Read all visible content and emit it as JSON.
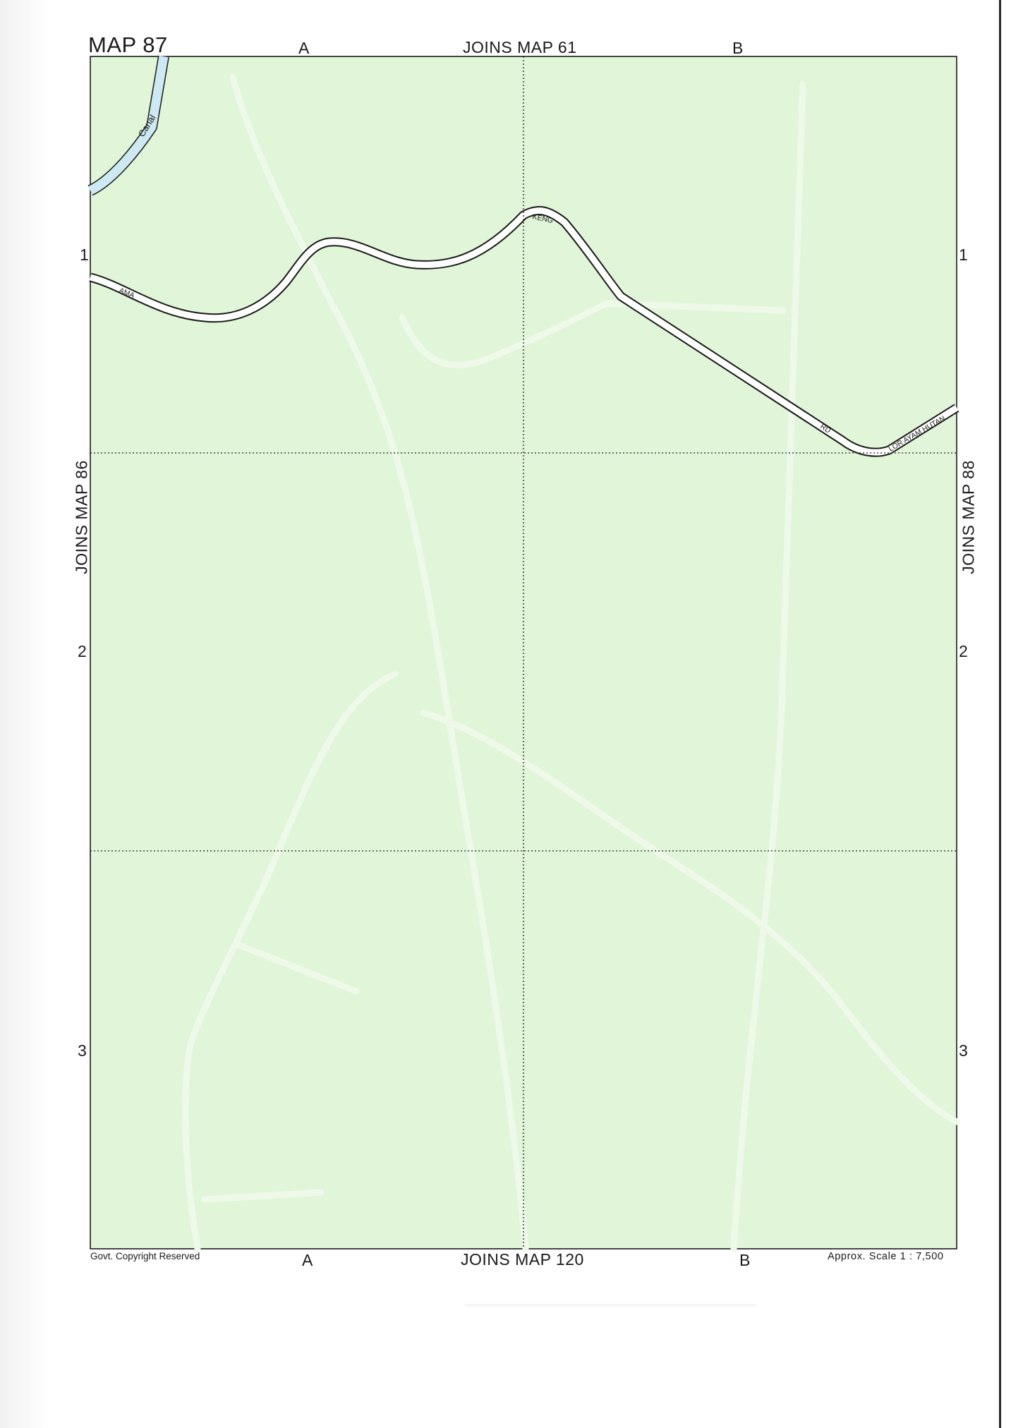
{
  "map": {
    "title": "MAP 87",
    "column_labels": [
      "A",
      "B"
    ],
    "row_labels": [
      "1",
      "2",
      "3"
    ],
    "joins": {
      "top": "JOINS MAP 61",
      "bottom": "JOINS MAP 120",
      "left": "JOINS MAP 86",
      "right": "JOINS MAP 88"
    },
    "copyright": "Govt. Copyright Reserved",
    "scale": "Approx. Scale 1 : 7,500",
    "features": {
      "canal": "Canal",
      "road_labels": [
        "AMA",
        "KENG",
        "RD",
        "LOR AYAM HUTAN"
      ]
    },
    "colors": {
      "land": "#e1f6d9",
      "water": "#cde9f3",
      "road_fill": "#ffffff",
      "road_casing": "#1a1a1a",
      "grid": "#1a1a1a"
    }
  }
}
